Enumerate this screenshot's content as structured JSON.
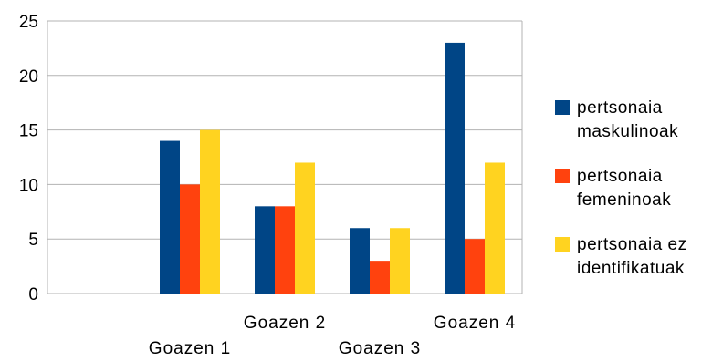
{
  "chart_data": {
    "type": "bar",
    "categories": [
      "",
      "Goazen 1",
      "Goazen 2",
      "Goazen 3",
      "Goazen 4"
    ],
    "series": [
      {
        "name": [
          "pertsonaia",
          "maskulinoak"
        ],
        "values": [
          null,
          14,
          8,
          6,
          23
        ],
        "color": "#004586"
      },
      {
        "name": [
          "pertsonaia",
          "femeninoak"
        ],
        "values": [
          null,
          10,
          8,
          3,
          5
        ],
        "color": "#ff420e"
      },
      {
        "name": [
          "pertsonaia ez",
          "identifikatuak"
        ],
        "values": [
          null,
          15,
          12,
          6,
          12
        ],
        "color": "#ffd320"
      }
    ],
    "ylim": [
      0,
      25
    ],
    "yticks": [
      "0",
      "5",
      "10",
      "15",
      "20",
      "25"
    ],
    "grid": true,
    "legend_position": "right"
  }
}
